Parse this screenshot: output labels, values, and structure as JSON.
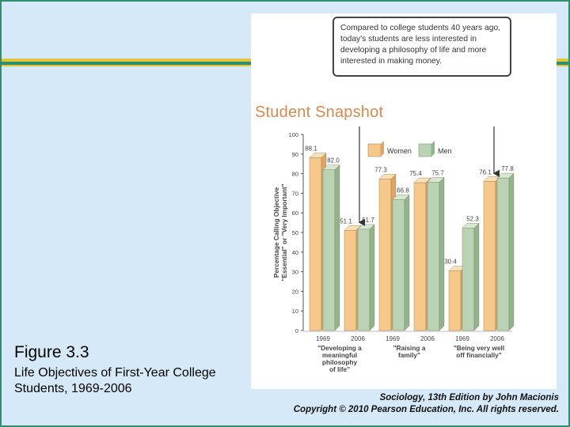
{
  "slide": {
    "figure_title": "Figure 3.3",
    "figure_subtitle": "Life Objectives of First-Year College Students, 1969-2006",
    "credit_line1": "Sociology, 13th Edition by John Macionis",
    "credit_line2": "Copyright © 2010 Pearson Education, Inc.  All rights reserved."
  },
  "figure": {
    "heading": "Student Snapshot",
    "callout": "Compared to college students 40 years ago, today's students are less interested in developing a philosophy of life and more interested in making money."
  },
  "colors": {
    "women_front": "#f6c98a",
    "women_side": "#e0a560",
    "women_top": "#fae0b5",
    "men_front": "#b9d3b4",
    "men_side": "#8fb58a",
    "men_top": "#d6e8d2",
    "stripe_gold": "#e2c63a",
    "stripe_green": "#2f8f6f"
  },
  "chart_data": {
    "type": "bar",
    "ylabel": "Percentage Calling Objective \"Essential\" or \"Very Important\"",
    "ylim": [
      0,
      100
    ],
    "yticks": [
      0,
      10,
      20,
      30,
      40,
      50,
      60,
      70,
      80,
      90,
      100
    ],
    "legend": [
      "Women",
      "Men"
    ],
    "legend_position": "top",
    "groups": [
      {
        "label_lines": [
          "\"Developing a",
          "meaningful",
          "philosophy",
          "of life\""
        ],
        "bars": [
          {
            "year": "1969",
            "women": 88.1,
            "men": 82.0
          },
          {
            "year": "2006",
            "women": 51.1,
            "men": 51.7
          }
        ]
      },
      {
        "label_lines": [
          "\"Raising a",
          "family\""
        ],
        "bars": [
          {
            "year": "1969",
            "women": 77.3,
            "men": 66.8
          },
          {
            "year": "2006",
            "women": 75.4,
            "men": 75.7
          }
        ]
      },
      {
        "label_lines": [
          "\"Being very well",
          "off financially\""
        ],
        "bars": [
          {
            "year": "1969",
            "women": 30.4,
            "men": 52.3
          },
          {
            "year": "2006",
            "women": 76.1,
            "men": 77.8
          }
        ]
      }
    ]
  }
}
